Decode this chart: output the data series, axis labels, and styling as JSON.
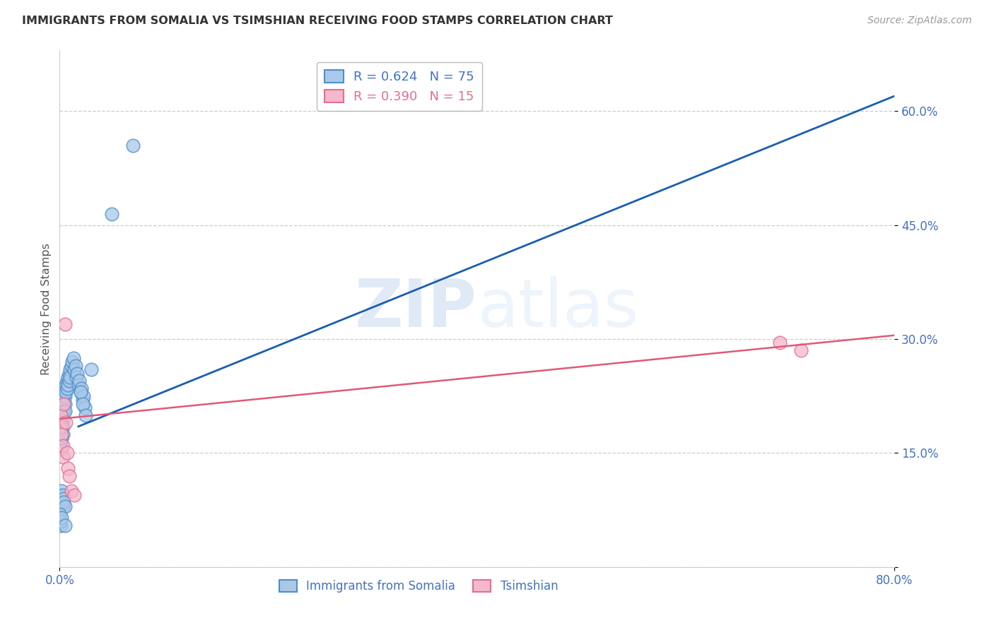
{
  "title": "IMMIGRANTS FROM SOMALIA VS TSIMSHIAN RECEIVING FOOD STAMPS CORRELATION CHART",
  "source": "Source: ZipAtlas.com",
  "ylabel": "Receiving Food Stamps",
  "xlim": [
    0.0,
    0.8
  ],
  "ylim": [
    0.0,
    0.68
  ],
  "yticks": [
    0.0,
    0.15,
    0.3,
    0.45,
    0.6
  ],
  "xticks": [
    0.0,
    0.8
  ],
  "ytick_labels": [
    "",
    "15.0%",
    "30.0%",
    "45.0%",
    "60.0%"
  ],
  "xtick_labels": [
    "0.0%",
    "80.0%"
  ],
  "somalia_color": "#aac8e8",
  "somalia_edge_color": "#4d8fcc",
  "tsimshian_color": "#f5b8cc",
  "tsimshian_edge_color": "#e07090",
  "somalia_line_color": "#1a5db0",
  "tsimshian_line_color": "#e05878",
  "axis_label_color": "#4472c4",
  "title_color": "#333333",
  "watermark_zip": "ZIP",
  "watermark_atlas": "atlas",
  "legend_r1": "R = 0.624",
  "legend_n1": "N = 75",
  "legend_r2": "R = 0.390",
  "legend_n2": "N = 15",
  "somalia_x": [
    0.0,
    0.001,
    0.001,
    0.001,
    0.001,
    0.001,
    0.001,
    0.001,
    0.001,
    0.002,
    0.002,
    0.002,
    0.002,
    0.002,
    0.002,
    0.002,
    0.002,
    0.003,
    0.003,
    0.003,
    0.003,
    0.003,
    0.003,
    0.004,
    0.004,
    0.004,
    0.004,
    0.005,
    0.005,
    0.005,
    0.005,
    0.006,
    0.006,
    0.007,
    0.007,
    0.008,
    0.008,
    0.009,
    0.009,
    0.01,
    0.01,
    0.011,
    0.012,
    0.013,
    0.014,
    0.015,
    0.016,
    0.017,
    0.018,
    0.019,
    0.02,
    0.021,
    0.022,
    0.023,
    0.024,
    0.001,
    0.001,
    0.002,
    0.002,
    0.003,
    0.003,
    0.004,
    0.004,
    0.005,
    0.02,
    0.022,
    0.025,
    0.03,
    0.05,
    0.07,
    0.0,
    0.001,
    0.001,
    0.002,
    0.005
  ],
  "somalia_y": [
    0.185,
    0.19,
    0.185,
    0.18,
    0.175,
    0.17,
    0.165,
    0.16,
    0.155,
    0.22,
    0.21,
    0.2,
    0.195,
    0.19,
    0.185,
    0.175,
    0.17,
    0.225,
    0.215,
    0.205,
    0.195,
    0.185,
    0.175,
    0.23,
    0.22,
    0.21,
    0.205,
    0.235,
    0.225,
    0.215,
    0.205,
    0.24,
    0.23,
    0.245,
    0.235,
    0.25,
    0.24,
    0.255,
    0.245,
    0.26,
    0.25,
    0.265,
    0.27,
    0.275,
    0.26,
    0.265,
    0.25,
    0.255,
    0.24,
    0.245,
    0.23,
    0.235,
    0.22,
    0.225,
    0.21,
    0.095,
    0.09,
    0.1,
    0.085,
    0.095,
    0.08,
    0.09,
    0.085,
    0.08,
    0.23,
    0.215,
    0.2,
    0.26,
    0.465,
    0.555,
    0.07,
    0.055,
    0.06,
    0.065,
    0.055
  ],
  "tsimshian_x": [
    0.001,
    0.001,
    0.002,
    0.003,
    0.003,
    0.004,
    0.005,
    0.006,
    0.007,
    0.008,
    0.009,
    0.011,
    0.014,
    0.69,
    0.71
  ],
  "tsimshian_y": [
    0.2,
    0.185,
    0.175,
    0.145,
    0.16,
    0.215,
    0.32,
    0.19,
    0.15,
    0.13,
    0.12,
    0.1,
    0.095,
    0.295,
    0.285
  ],
  "somalia_line_x": [
    0.018,
    0.8
  ],
  "somalia_line_y": [
    0.185,
    0.62
  ],
  "tsimshian_line_x": [
    0.0,
    0.8
  ],
  "tsimshian_line_y": [
    0.195,
    0.305
  ]
}
